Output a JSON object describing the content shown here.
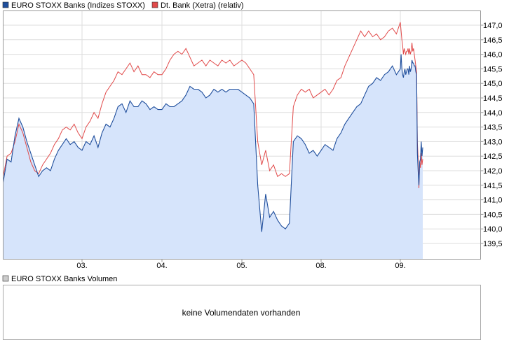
{
  "chart_data": [
    {
      "type": "line",
      "title": "",
      "legend": {
        "placement": "top-left",
        "entries": [
          "EURO STOXX Banks (Indizes STOXX)",
          "Dt. Bank (Xetra) (relativ)"
        ]
      },
      "x_tick_labels": [
        "03.",
        "04.",
        "05.",
        "08.",
        "09."
      ],
      "y_tick_labels": [
        "139,5",
        "140,0",
        "140,5",
        "141,0",
        "141,5",
        "142,0",
        "142,5",
        "143,0",
        "143,5",
        "144,0",
        "144,5",
        "145,0",
        "145,5",
        "146,0",
        "146,5",
        "147,0"
      ],
      "ylim": [
        139.0,
        147.2
      ],
      "y_axis_position": "right",
      "grid": true,
      "x_day_range": [
        0,
        7.5
      ],
      "series": [
        {
          "name": "EURO STOXX Banks (Indizes STOXX)",
          "color": "#1f4e9c",
          "fill": "#d6e4fb",
          "points": [
            [
              0.0,
              141.6
            ],
            [
              0.05,
              142.4
            ],
            [
              0.1,
              142.3
            ],
            [
              0.15,
              143.2
            ],
            [
              0.2,
              143.8
            ],
            [
              0.25,
              143.5
            ],
            [
              0.3,
              143.0
            ],
            [
              0.35,
              142.6
            ],
            [
              0.4,
              142.2
            ],
            [
              0.45,
              141.8
            ],
            [
              0.5,
              142.0
            ],
            [
              0.55,
              142.1
            ],
            [
              0.6,
              142.0
            ],
            [
              0.65,
              142.4
            ],
            [
              0.7,
              142.7
            ],
            [
              0.75,
              142.9
            ],
            [
              0.8,
              143.1
            ],
            [
              0.85,
              142.9
            ],
            [
              0.9,
              143.0
            ],
            [
              0.95,
              142.8
            ],
            [
              1.0,
              142.7
            ],
            [
              1.05,
              143.0
            ],
            [
              1.1,
              142.9
            ],
            [
              1.15,
              143.2
            ],
            [
              1.2,
              142.8
            ],
            [
              1.25,
              143.3
            ],
            [
              1.3,
              143.6
            ],
            [
              1.35,
              143.5
            ],
            [
              1.4,
              143.8
            ],
            [
              1.45,
              144.2
            ],
            [
              1.5,
              144.3
            ],
            [
              1.55,
              144.0
            ],
            [
              1.6,
              144.4
            ],
            [
              1.65,
              144.2
            ],
            [
              1.7,
              144.2
            ],
            [
              1.75,
              144.4
            ],
            [
              1.8,
              144.3
            ],
            [
              1.85,
              144.1
            ],
            [
              1.9,
              144.2
            ],
            [
              1.95,
              144.1
            ],
            [
              2.0,
              144.1
            ],
            [
              2.05,
              144.3
            ],
            [
              2.1,
              144.2
            ],
            [
              2.15,
              144.2
            ],
            [
              2.2,
              144.3
            ],
            [
              2.25,
              144.4
            ],
            [
              2.3,
              144.6
            ],
            [
              2.35,
              144.9
            ],
            [
              2.4,
              144.8
            ],
            [
              2.45,
              144.8
            ],
            [
              2.5,
              144.7
            ],
            [
              2.55,
              144.5
            ],
            [
              2.6,
              144.6
            ],
            [
              2.65,
              144.8
            ],
            [
              2.7,
              144.7
            ],
            [
              2.75,
              144.8
            ],
            [
              2.8,
              144.7
            ],
            [
              2.85,
              144.8
            ],
            [
              2.9,
              144.8
            ],
            [
              2.95,
              144.8
            ],
            [
              3.0,
              144.7
            ],
            [
              3.05,
              144.6
            ],
            [
              3.1,
              144.5
            ],
            [
              3.15,
              144.3
            ],
            [
              3.2,
              141.5
            ],
            [
              3.25,
              139.9
            ],
            [
              3.3,
              141.2
            ],
            [
              3.35,
              140.4
            ],
            [
              3.4,
              140.6
            ],
            [
              3.45,
              140.3
            ],
            [
              3.5,
              140.1
            ],
            [
              3.55,
              140.0
            ],
            [
              3.6,
              140.2
            ],
            [
              3.65,
              143.0
            ],
            [
              3.7,
              143.2
            ],
            [
              3.75,
              143.1
            ],
            [
              3.8,
              142.9
            ],
            [
              3.85,
              142.6
            ],
            [
              3.9,
              142.7
            ],
            [
              3.95,
              142.5
            ],
            [
              4.0,
              142.7
            ],
            [
              4.05,
              142.9
            ],
            [
              4.1,
              142.8
            ],
            [
              4.15,
              142.7
            ],
            [
              4.2,
              143.1
            ],
            [
              4.25,
              143.3
            ],
            [
              4.3,
              143.6
            ],
            [
              4.35,
              143.8
            ],
            [
              4.4,
              144.0
            ],
            [
              4.45,
              144.2
            ],
            [
              4.5,
              144.3
            ],
            [
              4.55,
              144.6
            ],
            [
              4.6,
              144.9
            ],
            [
              4.65,
              145.0
            ],
            [
              4.7,
              145.2
            ],
            [
              4.75,
              145.1
            ],
            [
              4.8,
              145.3
            ],
            [
              4.85,
              145.4
            ],
            [
              4.9,
              145.6
            ],
            [
              4.95,
              145.3
            ],
            [
              5.0,
              145.5
            ],
            [
              5.05,
              146.0
            ],
            [
              5.1,
              145.5
            ],
            [
              5.15,
              145.3
            ],
            [
              5.2,
              145.2
            ],
            [
              5.25,
              145.4
            ],
            [
              5.3,
              145.5
            ],
            [
              5.35,
              145.3
            ],
            [
              5.4,
              145.4
            ],
            [
              5.45,
              145.5
            ],
            [
              5.5,
              145.5
            ],
            [
              5.55,
              145.3
            ],
            [
              5.6,
              145.6
            ],
            [
              5.65,
              145.4
            ],
            [
              5.7,
              145.5
            ],
            [
              5.75,
              145.8
            ],
            [
              5.8,
              145.7
            ],
            [
              5.85,
              145.7
            ],
            [
              5.9,
              145.6
            ],
            [
              5.95,
              145.6
            ],
            [
              6.0,
              145.4
            ],
            [
              6.05,
              145.3
            ],
            [
              6.1,
              142.6
            ],
            [
              6.15,
              142.0
            ],
            [
              6.2,
              141.5
            ],
            [
              6.25,
              142.3
            ],
            [
              6.3,
              142.4
            ],
            [
              6.35,
              143.0
            ],
            [
              6.4,
              142.5
            ],
            [
              6.45,
              142.8
            ]
          ]
        },
        {
          "name": "Dt. Bank (Xetra) (relativ)",
          "color": "#e14a4a",
          "points": [
            [
              0.0,
              141.8
            ],
            [
              0.05,
              142.5
            ],
            [
              0.1,
              142.6
            ],
            [
              0.15,
              143.0
            ],
            [
              0.2,
              143.6
            ],
            [
              0.25,
              143.3
            ],
            [
              0.3,
              142.8
            ],
            [
              0.35,
              142.3
            ],
            [
              0.4,
              142.0
            ],
            [
              0.45,
              141.9
            ],
            [
              0.5,
              142.2
            ],
            [
              0.55,
              142.4
            ],
            [
              0.6,
              142.6
            ],
            [
              0.65,
              142.9
            ],
            [
              0.7,
              143.1
            ],
            [
              0.75,
              143.4
            ],
            [
              0.8,
              143.5
            ],
            [
              0.85,
              143.4
            ],
            [
              0.9,
              143.6
            ],
            [
              0.95,
              143.3
            ],
            [
              1.0,
              143.1
            ],
            [
              1.05,
              143.5
            ],
            [
              1.1,
              143.7
            ],
            [
              1.15,
              144.0
            ],
            [
              1.2,
              143.8
            ],
            [
              1.25,
              144.3
            ],
            [
              1.3,
              144.7
            ],
            [
              1.35,
              144.9
            ],
            [
              1.4,
              145.1
            ],
            [
              1.45,
              145.4
            ],
            [
              1.5,
              145.3
            ],
            [
              1.55,
              145.5
            ],
            [
              1.6,
              145.7
            ],
            [
              1.65,
              145.4
            ],
            [
              1.7,
              145.6
            ],
            [
              1.75,
              145.3
            ],
            [
              1.8,
              145.3
            ],
            [
              1.85,
              145.2
            ],
            [
              1.9,
              145.4
            ],
            [
              1.95,
              145.3
            ],
            [
              2.0,
              145.3
            ],
            [
              2.05,
              145.5
            ],
            [
              2.1,
              145.8
            ],
            [
              2.15,
              146.0
            ],
            [
              2.2,
              146.1
            ],
            [
              2.25,
              146.0
            ],
            [
              2.3,
              146.2
            ],
            [
              2.35,
              145.9
            ],
            [
              2.4,
              145.6
            ],
            [
              2.45,
              145.7
            ],
            [
              2.5,
              145.8
            ],
            [
              2.55,
              145.6
            ],
            [
              2.6,
              145.8
            ],
            [
              2.65,
              145.7
            ],
            [
              2.7,
              145.6
            ],
            [
              2.75,
              145.8
            ],
            [
              2.8,
              145.7
            ],
            [
              2.85,
              145.8
            ],
            [
              2.9,
              145.6
            ],
            [
              2.95,
              145.7
            ],
            [
              3.0,
              145.8
            ],
            [
              3.05,
              145.7
            ],
            [
              3.1,
              145.5
            ],
            [
              3.15,
              145.3
            ],
            [
              3.2,
              143.0
            ],
            [
              3.25,
              142.2
            ],
            [
              3.3,
              142.7
            ],
            [
              3.35,
              142.0
            ],
            [
              3.4,
              142.2
            ],
            [
              3.45,
              141.8
            ],
            [
              3.5,
              141.9
            ],
            [
              3.55,
              141.8
            ],
            [
              3.6,
              141.9
            ],
            [
              3.65,
              144.2
            ],
            [
              3.7,
              144.6
            ],
            [
              3.75,
              144.8
            ],
            [
              3.8,
              144.7
            ],
            [
              3.85,
              144.8
            ],
            [
              3.9,
              144.5
            ],
            [
              3.95,
              144.6
            ],
            [
              4.0,
              144.7
            ],
            [
              4.05,
              144.8
            ],
            [
              4.1,
              144.6
            ],
            [
              4.15,
              144.8
            ],
            [
              4.2,
              145.1
            ],
            [
              4.25,
              145.2
            ],
            [
              4.3,
              145.6
            ],
            [
              4.35,
              145.9
            ],
            [
              4.4,
              146.2
            ],
            [
              4.45,
              146.5
            ],
            [
              4.5,
              146.8
            ],
            [
              4.55,
              146.6
            ],
            [
              4.6,
              146.8
            ],
            [
              4.65,
              146.6
            ],
            [
              4.7,
              146.7
            ],
            [
              4.75,
              146.5
            ],
            [
              4.8,
              146.6
            ],
            [
              4.85,
              146.8
            ],
            [
              4.9,
              146.9
            ],
            [
              4.95,
              146.7
            ],
            [
              5.0,
              147.1
            ],
            [
              5.05,
              146.8
            ],
            [
              5.1,
              146.5
            ],
            [
              5.15,
              146.3
            ],
            [
              5.2,
              146.0
            ],
            [
              5.25,
              146.2
            ],
            [
              5.3,
              146.1
            ],
            [
              5.35,
              146.0
            ],
            [
              5.4,
              146.1
            ],
            [
              5.45,
              146.1
            ],
            [
              5.5,
              146.2
            ],
            [
              5.55,
              146.0
            ],
            [
              5.6,
              146.2
            ],
            [
              5.65,
              146.0
            ],
            [
              5.7,
              146.1
            ],
            [
              5.75,
              146.4
            ],
            [
              5.8,
              146.1
            ],
            [
              5.85,
              146.2
            ],
            [
              5.9,
              146.0
            ],
            [
              5.95,
              145.8
            ],
            [
              6.0,
              145.6
            ],
            [
              6.05,
              145.4
            ],
            [
              6.1,
              143.0
            ],
            [
              6.15,
              142.4
            ],
            [
              6.2,
              141.4
            ],
            [
              6.25,
              142.3
            ],
            [
              6.3,
              142.1
            ],
            [
              6.35,
              142.6
            ],
            [
              6.4,
              142.2
            ],
            [
              6.45,
              142.4
            ]
          ]
        }
      ]
    },
    {
      "type": "bar",
      "legend": {
        "placement": "top-left",
        "entries": [
          "EURO STOXX Banks Volumen"
        ]
      },
      "message": "keine Volumendaten vorhanden"
    }
  ]
}
